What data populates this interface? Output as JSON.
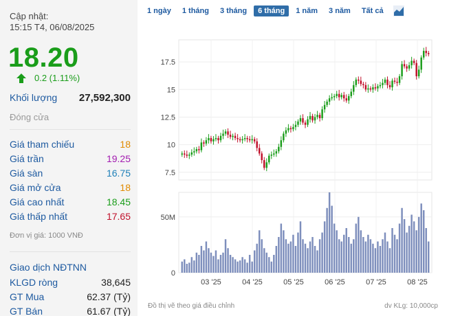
{
  "quote": {
    "updated_label": "Cập nhật:",
    "updated_time": "15:15 T4, 06/08/2025",
    "price": "18.20",
    "change": "0.2 (1.11%)",
    "volume_label": "Khối lượng",
    "volume": "27,592,300",
    "close_label": "Đóng cửa"
  },
  "price_table": [
    {
      "label": "Giá tham chiếu",
      "value": "18",
      "color": "#e08a00"
    },
    {
      "label": "Giá trần",
      "value": "19.25",
      "color": "#a21bb0"
    },
    {
      "label": "Giá sàn",
      "value": "16.75",
      "color": "#1e7fb8"
    },
    {
      "label": "Giá mở cửa",
      "value": "18",
      "color": "#e08a00"
    },
    {
      "label": "Giá cao nhất",
      "value": "18.45",
      "color": "#1a9d1a"
    },
    {
      "label": "Giá thấp nhất",
      "value": "17.65",
      "color": "#c0102a"
    }
  ],
  "unit_note": "Đơn vị giá: 1000 VNĐ",
  "foreign": {
    "title": "Giao dịch NĐTNN",
    "rows": [
      {
        "label": "KLGD ròng",
        "value": "38,645"
      },
      {
        "label": "GT Mua",
        "value": "62.37 (Tỷ)"
      },
      {
        "label": "GT Bán",
        "value": "61.67 (Tỷ)"
      }
    ]
  },
  "tabs": [
    {
      "label": "1 ngày",
      "active": false
    },
    {
      "label": "1 tháng",
      "active": false
    },
    {
      "label": "3 tháng",
      "active": false
    },
    {
      "label": "6 tháng",
      "active": true
    },
    {
      "label": "1 năm",
      "active": false
    },
    {
      "label": "3 năm",
      "active": false
    },
    {
      "label": "Tất cả",
      "active": false
    }
  ],
  "chart_icon": "area-chart-icon",
  "footer_left": "Đồ thị vẽ theo giá điều chỉnh",
  "footer_right": "dv KLg: 10,000cp",
  "colors": {
    "up": "#1a9d1a",
    "down": "#c0102a",
    "accent": "#1e5aa0",
    "volume": "#7d8ebc"
  },
  "chart_data": {
    "type": "candlestick",
    "x_ticks": [
      "03 '25",
      "04 '25",
      "05 '25",
      "06 '25",
      "07 '25",
      "08 '25"
    ],
    "y_ticks": [
      "7.5",
      "10",
      "12.5",
      "15",
      "17.5"
    ],
    "ylim": [
      6.8,
      19.5
    ],
    "volume_ticks": [
      "0",
      "50M"
    ],
    "volume_max": 72,
    "close": [
      9.2,
      9.1,
      9.0,
      9.1,
      9.3,
      9.4,
      9.6,
      9.5,
      10.2,
      10.1,
      10.4,
      10.6,
      10.3,
      10.5,
      10.6,
      10.4,
      10.8,
      11.0,
      11.2,
      10.9,
      10.7,
      10.8,
      10.6,
      10.5,
      10.4,
      10.5,
      10.6,
      10.5,
      10.4,
      10.5,
      10.3,
      9.7,
      9.2,
      8.6,
      7.9,
      8.4,
      9.0,
      9.1,
      9.2,
      9.4,
      9.8,
      10.4,
      11.0,
      11.3,
      11.5,
      11.4,
      11.6,
      11.8,
      12.1,
      12.4,
      12.0,
      11.8,
      12.3,
      12.6,
      12.2,
      12.5,
      12.7,
      12.4,
      13.2,
      13.6,
      13.9,
      14.2,
      14.3,
      14.4,
      14.6,
      14.3,
      14.5,
      14.2,
      14.0,
      14.4,
      14.8,
      15.4,
      15.9,
      15.8,
      15.5,
      15.4,
      15.0,
      15.1,
      15.0,
      15.2,
      15.1,
      15.3,
      15.4,
      15.6,
      15.9,
      15.4,
      15.2,
      15.8,
      15.7,
      15.6,
      16.2,
      17.3,
      17.1,
      16.9,
      17.2,
      17.6,
      17.4,
      16.2,
      16.8,
      17.9,
      18.5,
      18.3,
      18.2
    ],
    "volume": [
      10,
      12,
      8,
      9,
      14,
      11,
      18,
      16,
      24,
      20,
      28,
      22,
      18,
      15,
      20,
      12,
      16,
      18,
      30,
      22,
      16,
      14,
      12,
      10,
      11,
      14,
      12,
      9,
      16,
      10,
      20,
      26,
      38,
      30,
      22,
      18,
      14,
      10,
      16,
      24,
      32,
      44,
      38,
      30,
      26,
      28,
      34,
      24,
      36,
      46,
      30,
      26,
      22,
      28,
      32,
      24,
      20,
      30,
      36,
      46,
      58,
      72,
      60,
      44,
      38,
      30,
      28,
      34,
      40,
      32,
      26,
      30,
      44,
      50,
      38,
      32,
      28,
      34,
      30,
      26,
      22,
      28,
      24,
      30,
      36,
      28,
      22,
      40,
      34,
      30,
      44,
      58,
      48,
      36,
      42,
      52,
      46,
      38,
      50,
      62,
      56,
      40,
      28
    ]
  }
}
